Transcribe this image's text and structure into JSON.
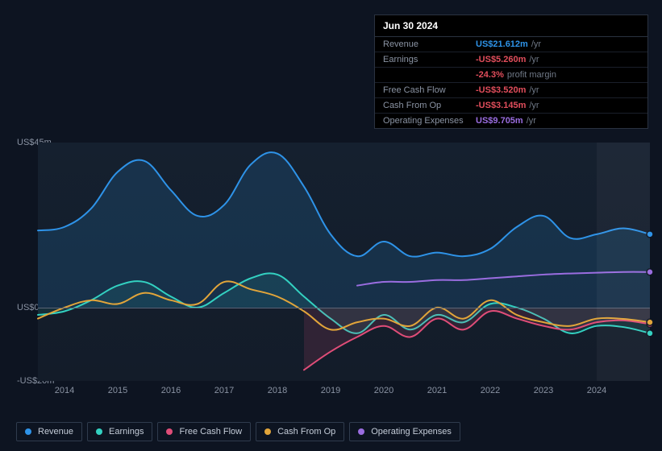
{
  "tooltip": {
    "date": "Jun 30 2024",
    "rows": [
      {
        "label": "Revenue",
        "value": "US$21.612m",
        "suffix": "/yr",
        "color": "#2e93e8"
      },
      {
        "label": "Earnings",
        "value": "-US$5.260m",
        "suffix": "/yr",
        "color": "#e24e5c"
      },
      {
        "label": "",
        "value": "-24.3%",
        "suffix": "profit margin",
        "color": "#e24e5c"
      },
      {
        "label": "Free Cash Flow",
        "value": "-US$3.520m",
        "suffix": "/yr",
        "color": "#e24e5c"
      },
      {
        "label": "Cash From Op",
        "value": "-US$3.145m",
        "suffix": "/yr",
        "color": "#e24e5c"
      },
      {
        "label": "Operating Expenses",
        "value": "US$9.705m",
        "suffix": "/yr",
        "color": "#9a6de0"
      }
    ]
  },
  "chart": {
    "type": "line-area",
    "background_gradient": [
      "#15202f",
      "#131c29"
    ],
    "y_axis": {
      "min": -20,
      "max": 45,
      "ticks": [
        {
          "value": 45,
          "label": "US$45m"
        },
        {
          "value": 0,
          "label": "US$0"
        },
        {
          "value": -20,
          "label": "-US$20m"
        }
      ],
      "zero_color": "#5a6578",
      "label_color": "#8a93a3",
      "label_fontsize": 11
    },
    "x_axis": {
      "min": 2013.5,
      "max": 2025.0,
      "ticks": [
        2014,
        2015,
        2016,
        2017,
        2018,
        2019,
        2020,
        2021,
        2022,
        2023,
        2024
      ],
      "label_color": "#8a93a3",
      "label_fontsize": 11
    },
    "highlight_band": {
      "from": 2024.0,
      "to": 2025.0
    },
    "series": [
      {
        "key": "revenue",
        "legend": "Revenue",
        "color": "#2e93e8",
        "line_width": 2,
        "area_opacity": 0.16,
        "marker_end": true,
        "area": true,
        "data": [
          [
            2013.5,
            21
          ],
          [
            2014.0,
            22
          ],
          [
            2014.5,
            27
          ],
          [
            2015.0,
            37
          ],
          [
            2015.5,
            40
          ],
          [
            2016.0,
            32
          ],
          [
            2016.5,
            25
          ],
          [
            2017.0,
            28
          ],
          [
            2017.5,
            39
          ],
          [
            2018.0,
            42
          ],
          [
            2018.5,
            33
          ],
          [
            2019.0,
            20
          ],
          [
            2019.5,
            14
          ],
          [
            2020.0,
            18
          ],
          [
            2020.5,
            14
          ],
          [
            2021.0,
            15
          ],
          [
            2021.5,
            14
          ],
          [
            2022.0,
            16
          ],
          [
            2022.5,
            22
          ],
          [
            2023.0,
            25
          ],
          [
            2023.5,
            19
          ],
          [
            2024.0,
            20
          ],
          [
            2024.5,
            21.6
          ],
          [
            2025.0,
            20
          ]
        ]
      },
      {
        "key": "earnings",
        "legend": "Earnings",
        "color": "#33d1c1",
        "line_width": 2,
        "area_opacity": 0.1,
        "marker_end": true,
        "area": true,
        "data": [
          [
            2013.5,
            -2
          ],
          [
            2014.0,
            -1
          ],
          [
            2014.5,
            2
          ],
          [
            2015.0,
            6
          ],
          [
            2015.5,
            7
          ],
          [
            2016.0,
            3
          ],
          [
            2016.5,
            0
          ],
          [
            2017.0,
            4
          ],
          [
            2017.5,
            8
          ],
          [
            2018.0,
            9
          ],
          [
            2018.5,
            3
          ],
          [
            2019.0,
            -3
          ],
          [
            2019.5,
            -7
          ],
          [
            2020.0,
            -2
          ],
          [
            2020.5,
            -6
          ],
          [
            2021.0,
            -2
          ],
          [
            2021.5,
            -4
          ],
          [
            2022.0,
            1
          ],
          [
            2022.5,
            0
          ],
          [
            2023.0,
            -3
          ],
          [
            2023.5,
            -7
          ],
          [
            2024.0,
            -5
          ],
          [
            2024.5,
            -5.3
          ],
          [
            2025.0,
            -7
          ]
        ]
      },
      {
        "key": "fcf",
        "legend": "Free Cash Flow",
        "color": "#e04d78",
        "line_width": 2,
        "area_opacity": 0.14,
        "marker_end": true,
        "area": true,
        "data": [
          [
            2018.5,
            -17
          ],
          [
            2019.0,
            -12
          ],
          [
            2019.5,
            -8
          ],
          [
            2020.0,
            -5
          ],
          [
            2020.5,
            -8
          ],
          [
            2021.0,
            -3
          ],
          [
            2021.5,
            -6
          ],
          [
            2022.0,
            -1
          ],
          [
            2022.5,
            -3
          ],
          [
            2023.0,
            -5
          ],
          [
            2023.5,
            -6
          ],
          [
            2024.0,
            -4
          ],
          [
            2024.5,
            -3.5
          ],
          [
            2025.0,
            -4.5
          ]
        ]
      },
      {
        "key": "cfo",
        "legend": "Cash From Op",
        "color": "#e2a53a",
        "line_width": 2,
        "area_opacity": 0.0,
        "marker_end": true,
        "area": false,
        "data": [
          [
            2013.5,
            -3
          ],
          [
            2014.0,
            0
          ],
          [
            2014.5,
            2
          ],
          [
            2015.0,
            1
          ],
          [
            2015.5,
            4
          ],
          [
            2016.0,
            2
          ],
          [
            2016.5,
            1
          ],
          [
            2017.0,
            7
          ],
          [
            2017.5,
            5
          ],
          [
            2018.0,
            3
          ],
          [
            2018.5,
            -1
          ],
          [
            2019.0,
            -6
          ],
          [
            2019.5,
            -4
          ],
          [
            2020.0,
            -3
          ],
          [
            2020.5,
            -5
          ],
          [
            2021.0,
            0
          ],
          [
            2021.5,
            -3
          ],
          [
            2022.0,
            2
          ],
          [
            2022.5,
            -2
          ],
          [
            2023.0,
            -4
          ],
          [
            2023.5,
            -5
          ],
          [
            2024.0,
            -3
          ],
          [
            2024.5,
            -3.1
          ],
          [
            2025.0,
            -4
          ]
        ]
      },
      {
        "key": "opex",
        "legend": "Operating Expenses",
        "color": "#9a6de0",
        "line_width": 2,
        "area_opacity": 0.0,
        "marker_end": true,
        "area": false,
        "data": [
          [
            2019.5,
            6
          ],
          [
            2020.0,
            7
          ],
          [
            2020.5,
            7
          ],
          [
            2021.0,
            7.5
          ],
          [
            2021.5,
            7.5
          ],
          [
            2022.0,
            8
          ],
          [
            2022.5,
            8.5
          ],
          [
            2023.0,
            9
          ],
          [
            2023.5,
            9.3
          ],
          [
            2024.0,
            9.5
          ],
          [
            2024.5,
            9.7
          ],
          [
            2025.0,
            9.7
          ]
        ]
      }
    ]
  },
  "legend_title": null
}
